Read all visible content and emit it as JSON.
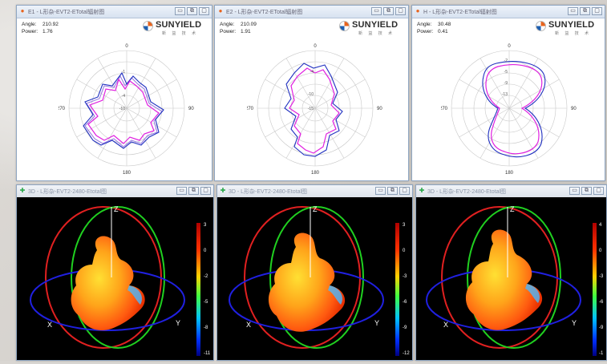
{
  "windows_top": [
    {
      "title": "E1 - L形杂-EVT2-ETotal辐射图",
      "angle_label": "Angle:",
      "angle_value": "210.92",
      "power_label": "Power:",
      "power_value": "1.76",
      "ticks": {
        "top": "0",
        "left": "270",
        "right": "90",
        "bottom": "180"
      },
      "ring_labels": [
        "-1",
        "-4",
        "-10"
      ]
    },
    {
      "title": "E2 - L形杂-EVT2-ETotal辐射图",
      "angle_label": "Angle:",
      "angle_value": "210.09",
      "power_label": "Power:",
      "power_value": "1.91",
      "ticks": {
        "top": "0",
        "left": "270",
        "right": "90",
        "bottom": "180"
      },
      "ring_labels": [
        "-4",
        "-10",
        "-15"
      ]
    },
    {
      "title": "H - L形杂-EVT2-ETotal辐射图",
      "angle_label": "Angle:",
      "angle_value": "30.48",
      "power_label": "Power:",
      "power_value": "0.41",
      "ticks": {
        "top": "0",
        "left": "270",
        "right": "90",
        "bottom": "180"
      },
      "ring_labels": [
        "-2",
        "-5",
        "-9",
        "-13"
      ]
    }
  ],
  "windows_bottom": [
    {
      "title": "3D - L形杂-EVT2-2480-Etotal图",
      "scale_labels": [
        "3",
        "0",
        "-2",
        "-5",
        "-8",
        "-11"
      ],
      "axis_z": "Z",
      "axis_x": "X",
      "axis_y": "Y"
    },
    {
      "title": "3D - L形杂-EVT2-2480-Etotal图",
      "scale_labels": [
        "3",
        "0",
        "-3",
        "-6",
        "-9",
        "-12"
      ],
      "axis_z": "Z",
      "axis_x": "X",
      "axis_y": "Y"
    },
    {
      "title": "3D - L形杂-EVT2-2480-Etotal图",
      "scale_labels": [
        "4",
        "0",
        "-3",
        "-6",
        "-9",
        "-1"
      ],
      "axis_z": "Z",
      "axis_x": "X",
      "axis_y": "Y"
    }
  ],
  "logo": {
    "brand": "SUNYIELD",
    "sub": "新 益 技 术"
  },
  "window_buttons": {
    "minimize": "▭",
    "restore": "⧉",
    "close": "▢"
  },
  "icons": {
    "polar_window": "orange-app-icon",
    "plot3d_window": "green-plus-icon"
  },
  "colors": {
    "trace_magenta": "#e020e0",
    "trace_blue": "#2030c0",
    "trace_lavender": "#9a7fe0",
    "ring_red": "#e02020",
    "ring_green": "#20d020",
    "ring_blue": "#2020e0"
  }
}
